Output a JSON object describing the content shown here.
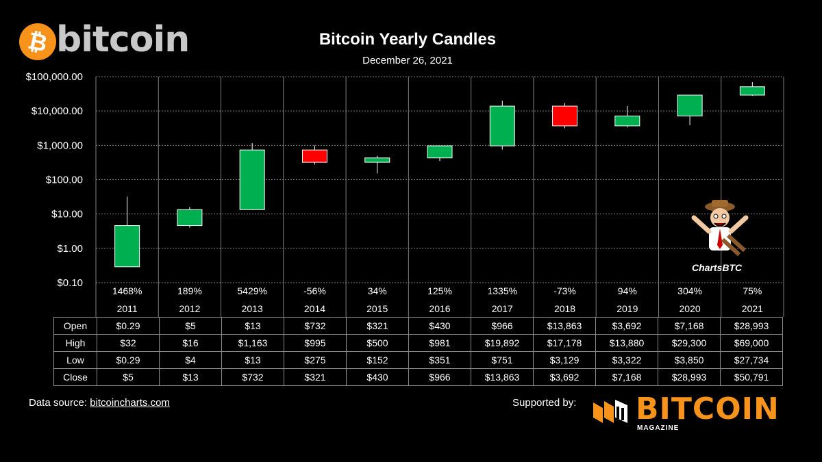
{
  "brand": {
    "logo_symbol": "₿",
    "logo_word": "bitcoin",
    "accent": "#f7931a"
  },
  "title": "Bitcoin Yearly Candles",
  "subtitle": "December 26, 2021",
  "colors": {
    "up": "#00b050",
    "down": "#ff0000",
    "grid": "#7f7f7f",
    "background": "#000000"
  },
  "chart_data": {
    "type": "candlestick",
    "title": "Bitcoin Yearly Candles",
    "yscale": "log",
    "ylim": [
      0.1,
      100000
    ],
    "y_ticks": [
      {
        "value": 100000,
        "label": "$100,000.00"
      },
      {
        "value": 10000,
        "label": "$10,000.00"
      },
      {
        "value": 1000,
        "label": "$1,000.00"
      },
      {
        "value": 100,
        "label": "$100.00"
      },
      {
        "value": 10,
        "label": "$10.00"
      },
      {
        "value": 1,
        "label": "$1.00"
      },
      {
        "value": 0.1,
        "label": "$0.10"
      }
    ],
    "grid": true,
    "categories": [
      "2011",
      "2012",
      "2013",
      "2014",
      "2015",
      "2016",
      "2017",
      "2018",
      "2019",
      "2020",
      "2021"
    ],
    "pct_change": [
      "1468%",
      "189%",
      "5429%",
      "-56%",
      "34%",
      "125%",
      "1335%",
      "-73%",
      "94%",
      "304%",
      "75%"
    ],
    "open": [
      0.29,
      4.6,
      13.4,
      732,
      321,
      430,
      966,
      13863,
      3692,
      7168,
      28993
    ],
    "high": [
      32,
      16,
      1163,
      995,
      500,
      981,
      19892,
      17178,
      13880,
      29300,
      69000
    ],
    "low": [
      0.29,
      4,
      13,
      275,
      152,
      351,
      751,
      3129,
      3322,
      3850,
      27734
    ],
    "close": [
      4.6,
      13.4,
      732,
      321,
      430,
      966,
      13863,
      3692,
      7168,
      28993,
      50791
    ]
  },
  "table": {
    "rows": [
      {
        "label": "Open",
        "values": [
          "$0.29",
          "$5",
          "$13",
          "$732",
          "$321",
          "$430",
          "$966",
          "$13,863",
          "$3,692",
          "$7,168",
          "$28,993"
        ]
      },
      {
        "label": "High",
        "values": [
          "$32",
          "$16",
          "$1,163",
          "$995",
          "$500",
          "$981",
          "$19,892",
          "$17,178",
          "$13,880",
          "$29,300",
          "$69,000"
        ]
      },
      {
        "label": "Low",
        "values": [
          "$0.29",
          "$4",
          "$13",
          "$275",
          "$152",
          "$351",
          "$751",
          "$3,129",
          "$3,322",
          "$3,850",
          "$27,734"
        ]
      },
      {
        "label": "Close",
        "values": [
          "$5",
          "$13",
          "$732",
          "$321",
          "$430",
          "$966",
          "$13,863",
          "$3,692",
          "$7,168",
          "$28,993",
          "$50,791"
        ]
      }
    ]
  },
  "footer": {
    "source_prefix": "Data source: ",
    "source_link": "bitcoincharts.com",
    "supported_by": "Supported by:",
    "sponsor_word": "BITCOIN",
    "sponsor_sub": "MAGAZINE"
  },
  "watermark": {
    "label": "ChartsBTC"
  }
}
